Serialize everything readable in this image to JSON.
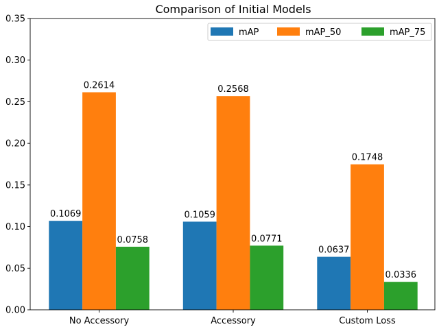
{
  "chart_data": {
    "type": "bar",
    "title": "Comparison of Initial Models",
    "xlabel": "",
    "ylabel": "",
    "categories": [
      "No Accessory",
      "Accessory",
      "Custom Loss"
    ],
    "series": [
      {
        "name": "mAP",
        "color": "#1f77b4",
        "values": [
          0.1069,
          0.1059,
          0.0637
        ],
        "labels": [
          "0.1069",
          "0.1059",
          "0.0637"
        ]
      },
      {
        "name": "mAP_50",
        "color": "#ff7f0e",
        "values": [
          0.2614,
          0.2568,
          0.1748
        ],
        "labels": [
          "0.2614",
          "0.2568",
          "0.1748"
        ]
      },
      {
        "name": "mAP_75",
        "color": "#2ca02c",
        "values": [
          0.0758,
          0.0771,
          0.0336
        ],
        "labels": [
          "0.0758",
          "0.0771",
          "0.0336"
        ]
      }
    ],
    "ylim": [
      0,
      0.35
    ],
    "yticks": [
      0.0,
      0.05,
      0.1,
      0.15,
      0.2,
      0.25,
      0.3,
      0.35
    ],
    "ytick_labels": [
      "0.00",
      "0.05",
      "0.10",
      "0.15",
      "0.20",
      "0.25",
      "0.30",
      "0.35"
    ],
    "grid": false,
    "legend_position": "top-right"
  }
}
